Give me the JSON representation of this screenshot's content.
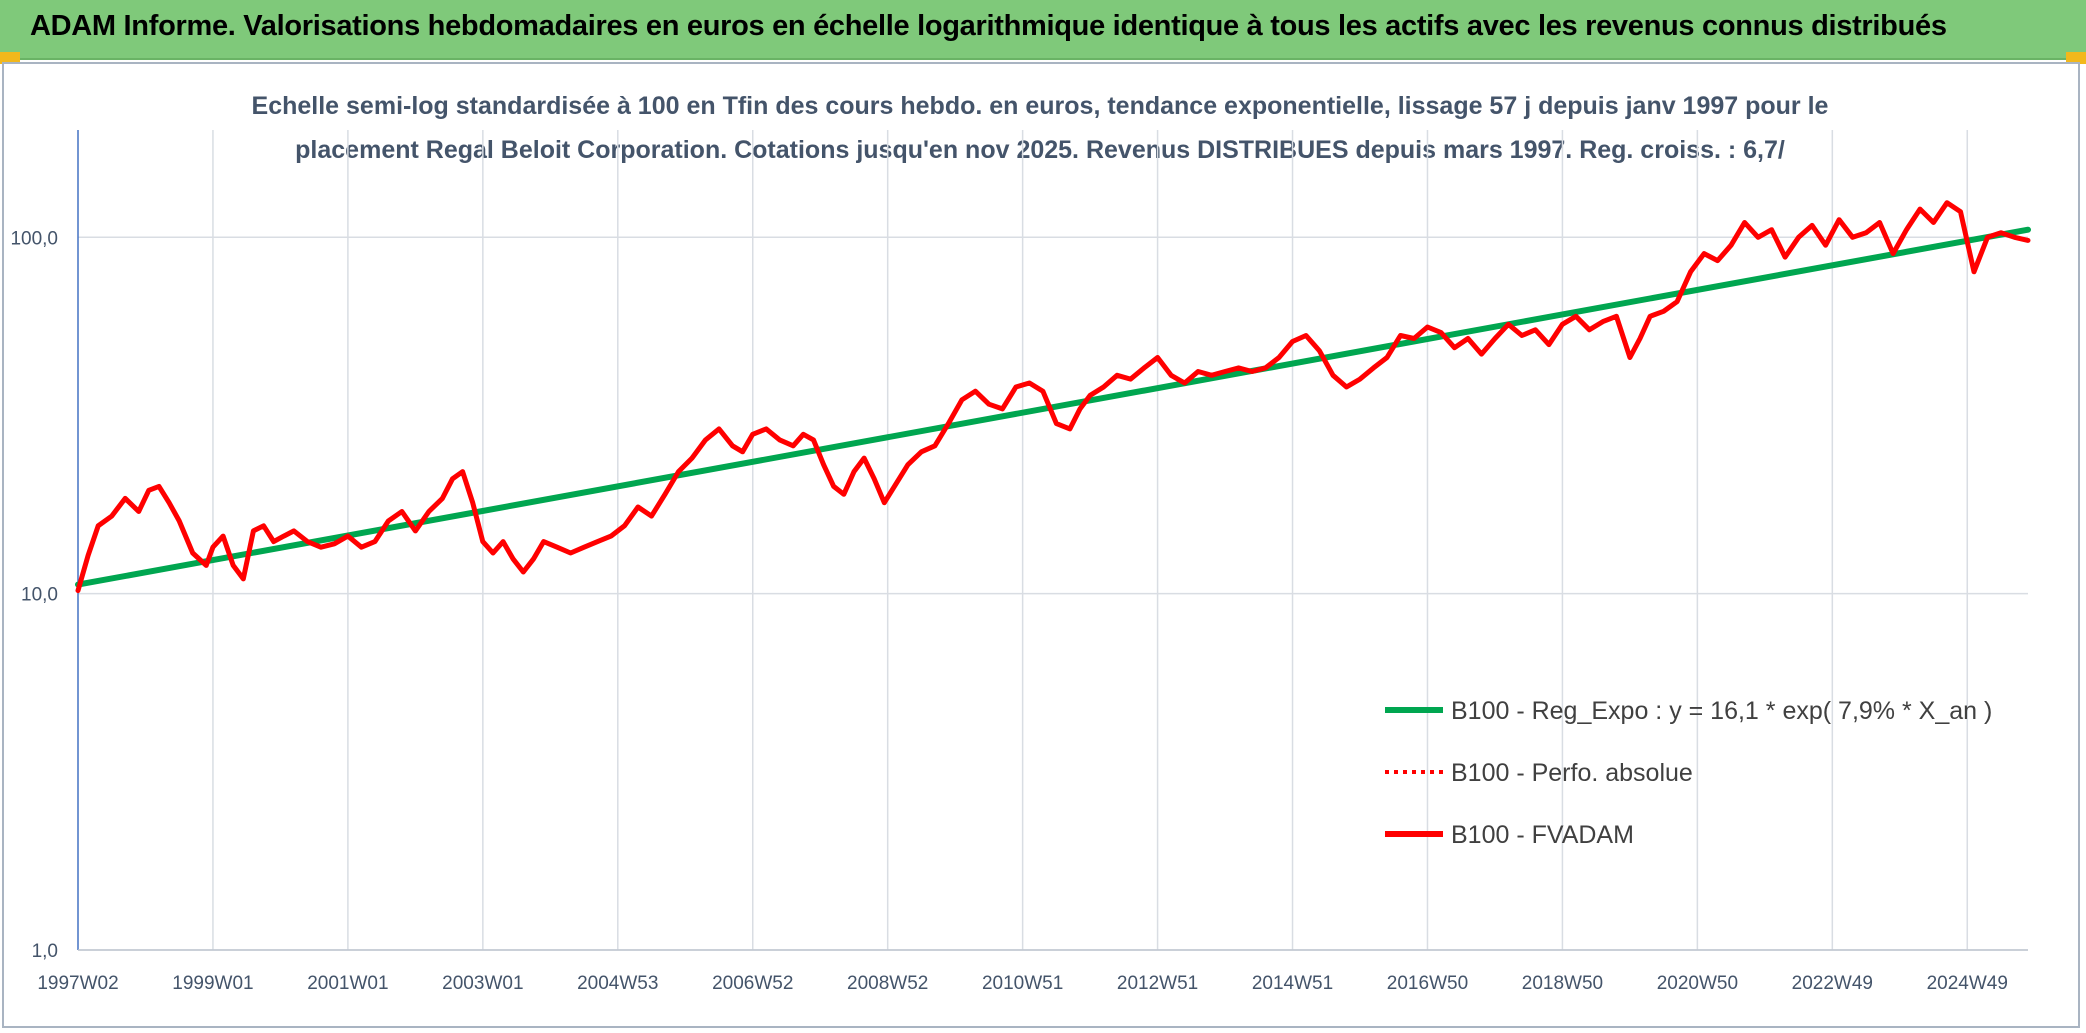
{
  "header": {
    "title": "ADAM Informe. Valorisations hebdomadaires en euros en échelle logarithmique identique à tous les actifs avec les revenus connus distribués"
  },
  "colors": {
    "banner": "#7fc97a",
    "accent_corner": "#f2b81c",
    "trend_line": "#00a650",
    "fvadam_line": "#ff0000",
    "grid": "#d9dde3",
    "axis_text": "#44546a"
  },
  "chart_data": {
    "type": "line",
    "title_lines": [
      "Echelle semi-log standardisée à 100 en Tfin des cours hebdo. en euros, tendance exponentielle, lissage 57 j depuis janv 1997 pour le",
      "placement Regal Beloit Corporation. Cotations jusqu'en nov 2025. Revenus DISTRIBUES depuis mars 1997. Reg. croiss. : 6,7/"
    ],
    "y_scale": "log",
    "ylim": [
      1,
      200
    ],
    "y_ticks": [
      {
        "value": 1,
        "label": "1,0"
      },
      {
        "value": 10,
        "label": "10,0"
      },
      {
        "value": 100,
        "label": "100,0"
      }
    ],
    "xlim": [
      1997.0,
      2025.9
    ],
    "x_ticks": [
      {
        "t": 1997.0,
        "label": "1997W02"
      },
      {
        "t": 1999.0,
        "label": "1999W01"
      },
      {
        "t": 2001.0,
        "label": "2001W01"
      },
      {
        "t": 2003.0,
        "label": "2003W01"
      },
      {
        "t": 2005.0,
        "label": "2004W53"
      },
      {
        "t": 2007.0,
        "label": "2006W52"
      },
      {
        "t": 2009.0,
        "label": "2008W52"
      },
      {
        "t": 2011.0,
        "label": "2010W51"
      },
      {
        "t": 2013.0,
        "label": "2012W51"
      },
      {
        "t": 2015.0,
        "label": "2014W51"
      },
      {
        "t": 2017.0,
        "label": "2016W50"
      },
      {
        "t": 2019.0,
        "label": "2018W50"
      },
      {
        "t": 2021.0,
        "label": "2020W50"
      },
      {
        "t": 2023.0,
        "label": "2022W49"
      },
      {
        "t": 2025.0,
        "label": "2024W49"
      }
    ],
    "legend_position": "right",
    "legend": [
      {
        "label": "B100 - Reg_Expo : y = 16,1 * exp( 7,9% *  X_an )",
        "style": "solid",
        "color": "#00a650"
      },
      {
        "label": "B100 - Perfo. absolue",
        "style": "dotted",
        "color": "#ff0000"
      },
      {
        "label": "B100 - FVADAM",
        "style": "solid",
        "color": "#ff0000"
      }
    ],
    "series": [
      {
        "key": "trend",
        "color": "#00a650",
        "x": [
          1997.0,
          2025.9
        ],
        "values": [
          10.6,
          105
        ]
      },
      {
        "key": "fvadam",
        "color": "#ff0000",
        "x": [
          1997.0,
          1997.15,
          1997.3,
          1997.5,
          1997.7,
          1997.9,
          1998.05,
          1998.2,
          1998.35,
          1998.5,
          1998.7,
          1998.9,
          1999.0,
          1999.15,
          1999.3,
          1999.45,
          1999.6,
          1999.75,
          1999.9,
          2000.05,
          2000.2,
          2000.4,
          2000.6,
          2000.8,
          2001.0,
          2001.2,
          2001.4,
          2001.6,
          2001.8,
          2002.0,
          2002.2,
          2002.4,
          2002.55,
          2002.7,
          2002.85,
          2003.0,
          2003.15,
          2003.3,
          2003.45,
          2003.6,
          2003.75,
          2003.9,
          2004.1,
          2004.3,
          2004.5,
          2004.7,
          2004.9,
          2005.1,
          2005.3,
          2005.5,
          2005.7,
          2005.9,
          2006.1,
          2006.3,
          2006.5,
          2006.7,
          2006.85,
          2007.0,
          2007.2,
          2007.4,
          2007.6,
          2007.75,
          2007.9,
          2008.05,
          2008.2,
          2008.35,
          2008.5,
          2008.65,
          2008.8,
          2008.95,
          2009.1,
          2009.3,
          2009.5,
          2009.7,
          2009.9,
          2010.1,
          2010.3,
          2010.5,
          2010.7,
          2010.9,
          2011.1,
          2011.3,
          2011.5,
          2011.7,
          2011.85,
          2012.0,
          2012.2,
          2012.4,
          2012.6,
          2012.8,
          2013.0,
          2013.2,
          2013.4,
          2013.6,
          2013.8,
          2014.0,
          2014.2,
          2014.4,
          2014.6,
          2014.8,
          2015.0,
          2015.2,
          2015.4,
          2015.6,
          2015.8,
          2016.0,
          2016.2,
          2016.4,
          2016.6,
          2016.8,
          2017.0,
          2017.2,
          2017.4,
          2017.6,
          2017.8,
          2018.0,
          2018.2,
          2018.4,
          2018.6,
          2018.8,
          2019.0,
          2019.2,
          2019.4,
          2019.6,
          2019.8,
          2020.0,
          2020.15,
          2020.3,
          2020.5,
          2020.7,
          2020.9,
          2021.1,
          2021.3,
          2021.5,
          2021.7,
          2021.9,
          2022.1,
          2022.3,
          2022.5,
          2022.7,
          2022.9,
          2023.1,
          2023.3,
          2023.5,
          2023.7,
          2023.9,
          2024.1,
          2024.3,
          2024.5,
          2024.7,
          2024.9,
          2025.1,
          2025.3,
          2025.5,
          2025.7,
          2025.9
        ],
        "values": [
          10.2,
          12.8,
          15.5,
          16.5,
          18.5,
          17.0,
          19.5,
          20.0,
          18.0,
          16.0,
          13.0,
          12.0,
          13.5,
          14.5,
          12.0,
          11.0,
          15.0,
          15.5,
          14.0,
          14.5,
          15.0,
          14.0,
          13.5,
          13.8,
          14.5,
          13.5,
          14.0,
          16.0,
          17.0,
          15.0,
          17.0,
          18.5,
          21.0,
          22.0,
          18.0,
          14.0,
          13.0,
          14.0,
          12.5,
          11.5,
          12.5,
          14.0,
          13.5,
          13.0,
          13.5,
          14.0,
          14.5,
          15.5,
          17.5,
          16.5,
          19.0,
          22.0,
          24.0,
          27.0,
          29.0,
          26.0,
          25.0,
          28.0,
          29.0,
          27.0,
          26.0,
          28.0,
          27.0,
          23.0,
          20.0,
          19.0,
          22.0,
          24.0,
          21.0,
          18.0,
          20.0,
          23.0,
          25.0,
          26.0,
          30.0,
          35.0,
          37.0,
          34.0,
          33.0,
          38.0,
          39.0,
          37.0,
          30.0,
          29.0,
          33.0,
          36.0,
          38.0,
          41.0,
          40.0,
          43.0,
          46.0,
          41.0,
          39.0,
          42.0,
          41.0,
          42.0,
          43.0,
          42.0,
          43.0,
          46.0,
          51.0,
          53.0,
          48.0,
          41.0,
          38.0,
          40.0,
          43.0,
          46.0,
          53.0,
          52.0,
          56.0,
          54.0,
          49.0,
          52.0,
          47.0,
          52.0,
          57.0,
          53.0,
          55.0,
          50.0,
          57.0,
          60.0,
          55.0,
          58.0,
          60.0,
          46.0,
          52.0,
          60.0,
          62.0,
          66.0,
          80.0,
          90.0,
          86.0,
          95.0,
          110.0,
          100.0,
          105.0,
          88.0,
          100.0,
          108.0,
          95.0,
          112.0,
          100.0,
          103.0,
          110.0,
          90.0,
          105.0,
          120.0,
          110.0,
          125.0,
          118.0,
          80.0,
          100.0,
          103.0,
          100.0,
          98.0
        ]
      }
    ]
  }
}
